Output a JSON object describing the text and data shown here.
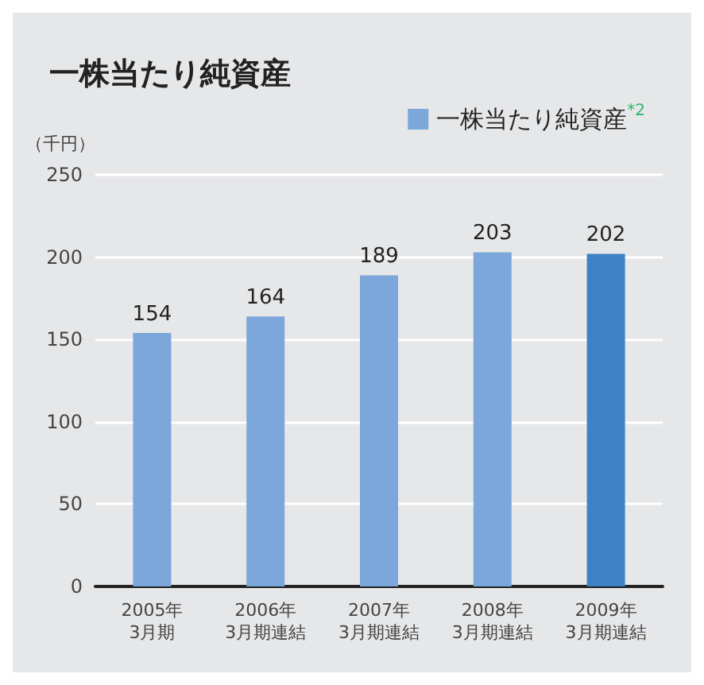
{
  "chart_data": {
    "type": "bar",
    "title": "一株当たり純資産",
    "ylabel": "（千円）",
    "categories": [
      "2005年\n3月期",
      "2006年\n3月期連結",
      "2007年\n3月期連結",
      "2008年\n3月期連結",
      "2009年\n3月期連結"
    ],
    "series": [
      {
        "name": "一株当たり純資産$^{*2}$",
        "color": "#7ba7da",
        "colors": [
          "#7ba7da",
          "#7ba7da",
          "#7ba7da",
          "#7ba7da",
          "#3d82c4"
        ],
        "values": [
          154,
          164,
          189,
          203,
          202
        ]
      }
    ],
    "ylim": [
      0,
      250
    ],
    "yticks": [
      0,
      50,
      100,
      150,
      200,
      250
    ],
    "grid": "y",
    "legend": "top right",
    "data_labels": true
  }
}
